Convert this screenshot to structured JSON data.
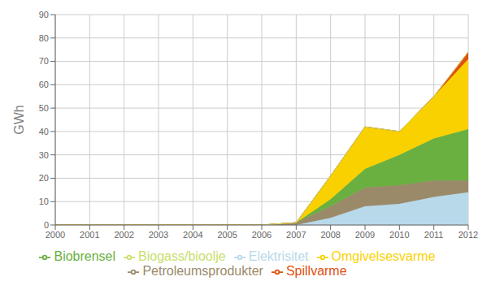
{
  "chart_data": {
    "type": "area",
    "stacked": true,
    "x": [
      2000,
      2001,
      2002,
      2003,
      2004,
      2005,
      2006,
      2007,
      2008,
      2009,
      2010,
      2011,
      2012
    ],
    "xlim": [
      2000,
      2012
    ],
    "xticks": [
      2000,
      2001,
      2002,
      2003,
      2004,
      2005,
      2006,
      2007,
      2008,
      2009,
      2010,
      2011,
      2012
    ],
    "ylabel": "GWh",
    "ylim": [
      0,
      90
    ],
    "yticks": [
      0,
      10,
      20,
      30,
      40,
      50,
      60,
      70,
      80,
      90
    ],
    "grid": true,
    "legend": "bottom",
    "series": [
      {
        "name": "Elektrisitet",
        "color": "#b8d9ea",
        "values": [
          0,
          0,
          0,
          0,
          0,
          0,
          0,
          0,
          3,
          8,
          9,
          12,
          14
        ]
      },
      {
        "name": "Petroleumsprodukter",
        "color": "#9b8a6a",
        "values": [
          0,
          0,
          0,
          0,
          0,
          0,
          0,
          1,
          5,
          8,
          8,
          7,
          5
        ]
      },
      {
        "name": "Biobrensel",
        "color": "#6ab040",
        "values": [
          0,
          0,
          0,
          0,
          0,
          0,
          0,
          0,
          3,
          8,
          13,
          18,
          22
        ]
      },
      {
        "name": "Omgivelsesvarme",
        "color": "#f9d100",
        "values": [
          0,
          0,
          0,
          0,
          0,
          0,
          0,
          0,
          10,
          18,
          10,
          18,
          30
        ]
      },
      {
        "name": "Spillvarme",
        "color": "#e05010",
        "values": [
          0,
          0,
          0,
          0,
          0,
          0,
          0,
          0,
          0,
          0,
          0,
          0,
          3
        ]
      },
      {
        "name": "Biogass/bioolje",
        "color": "#c8e06a",
        "values": [
          0,
          0,
          0,
          0,
          0,
          0,
          0,
          0,
          0,
          0,
          0,
          0,
          0
        ]
      }
    ]
  }
}
